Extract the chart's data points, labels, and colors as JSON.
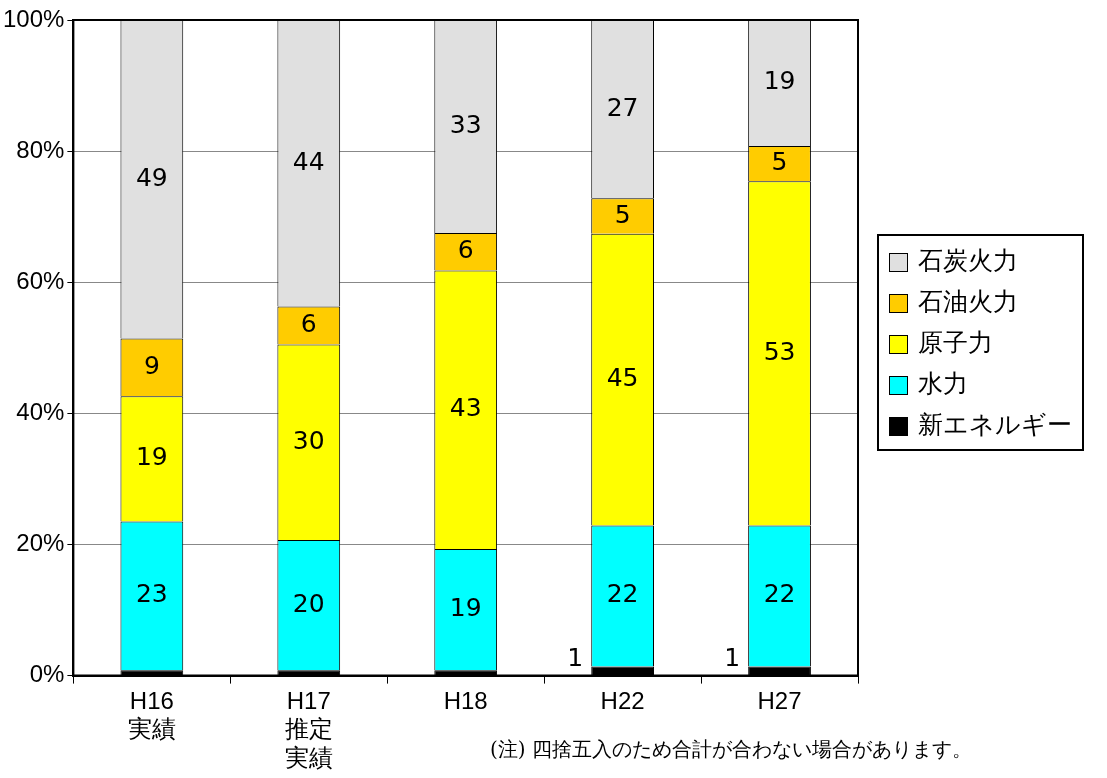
{
  "chart_data": {
    "type": "bar",
    "stacked": true,
    "categories": [
      "H16実績",
      "H17推定実績",
      "H18",
      "H22",
      "H27"
    ],
    "series": [
      {
        "name": "新エネルギー",
        "color": "#000000",
        "values": [
          0.8,
          0.8,
          0.8,
          1.4,
          1.4
        ],
        "value_labels": [
          null,
          null,
          null,
          "1",
          "1"
        ]
      },
      {
        "name": "水力",
        "color": "#00ffff",
        "values": [
          22.7,
          19.9,
          18.5,
          21.5,
          21.5
        ],
        "value_labels": [
          "23",
          "20",
          "19",
          "22",
          "22"
        ]
      },
      {
        "name": "原子力",
        "color": "#ffff00",
        "values": [
          19.1,
          29.8,
          42.5,
          44.5,
          52.5
        ],
        "value_labels": [
          "19",
          "30",
          "43",
          "45",
          "53"
        ]
      },
      {
        "name": "石油火力",
        "color": "#ffcc00",
        "values": [
          8.8,
          5.8,
          5.7,
          5.4,
          5.4
        ],
        "value_labels": [
          "9",
          "6",
          "6",
          "5",
          "5"
        ]
      },
      {
        "name": "石炭火力",
        "color": "#e0e0e0",
        "values": [
          48.6,
          43.7,
          32.5,
          27.2,
          19.2
        ],
        "value_labels": [
          "49",
          "44",
          "33",
          "27",
          "19"
        ]
      }
    ],
    "ylim": [
      0,
      100
    ],
    "yticks": [
      {
        "value": 0,
        "label": "0%"
      },
      {
        "value": 20,
        "label": "20%"
      },
      {
        "value": 40,
        "label": "40%"
      },
      {
        "value": 60,
        "label": "60%"
      },
      {
        "value": 80,
        "label": "80%"
      },
      {
        "value": 100,
        "label": "100%"
      }
    ],
    "grid": "y",
    "legend": "right",
    "annotations": [
      "(注) 四捨五入のため合計が合わない場合があります。"
    ]
  }
}
